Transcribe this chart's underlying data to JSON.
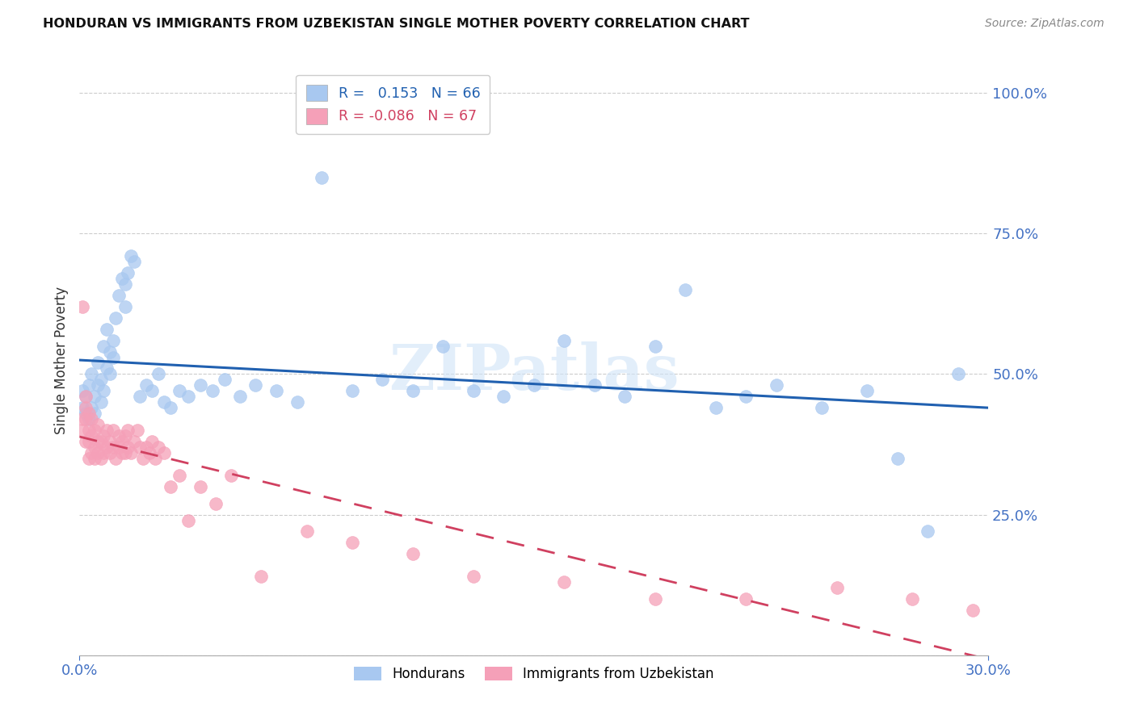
{
  "title": "HONDURAN VS IMMIGRANTS FROM UZBEKISTAN SINGLE MOTHER POVERTY CORRELATION CHART",
  "source": "Source: ZipAtlas.com",
  "ylabel": "Single Mother Poverty",
  "yticks": [
    0.0,
    0.25,
    0.5,
    0.75,
    1.0
  ],
  "ytick_labels": [
    "",
    "25.0%",
    "50.0%",
    "75.0%",
    "100.0%"
  ],
  "xlim": [
    0.0,
    0.3
  ],
  "ylim": [
    0.0,
    1.05
  ],
  "honduran_R": 0.153,
  "honduran_N": 66,
  "uzbek_R": -0.086,
  "uzbek_N": 67,
  "honduran_color": "#a8c8f0",
  "uzbek_color": "#f5a0b8",
  "trendline_honduran_color": "#2060b0",
  "trendline_uzbek_color": "#d04060",
  "watermark": "ZIPatlas",
  "honduran_scatter_x": [
    0.001,
    0.001,
    0.002,
    0.002,
    0.003,
    0.003,
    0.004,
    0.004,
    0.005,
    0.005,
    0.006,
    0.006,
    0.007,
    0.007,
    0.008,
    0.008,
    0.009,
    0.009,
    0.01,
    0.01,
    0.011,
    0.011,
    0.012,
    0.013,
    0.014,
    0.015,
    0.015,
    0.016,
    0.017,
    0.018,
    0.02,
    0.022,
    0.024,
    0.026,
    0.028,
    0.03,
    0.033,
    0.036,
    0.04,
    0.044,
    0.048,
    0.053,
    0.058,
    0.065,
    0.072,
    0.08,
    0.09,
    0.1,
    0.11,
    0.12,
    0.13,
    0.14,
    0.15,
    0.16,
    0.17,
    0.18,
    0.19,
    0.2,
    0.21,
    0.22,
    0.23,
    0.245,
    0.26,
    0.27,
    0.28,
    0.29
  ],
  "honduran_scatter_y": [
    0.44,
    0.47,
    0.43,
    0.46,
    0.42,
    0.48,
    0.44,
    0.5,
    0.43,
    0.46,
    0.48,
    0.52,
    0.45,
    0.49,
    0.47,
    0.55,
    0.51,
    0.58,
    0.5,
    0.54,
    0.53,
    0.56,
    0.6,
    0.64,
    0.67,
    0.62,
    0.66,
    0.68,
    0.71,
    0.7,
    0.46,
    0.48,
    0.47,
    0.5,
    0.45,
    0.44,
    0.47,
    0.46,
    0.48,
    0.47,
    0.49,
    0.46,
    0.48,
    0.47,
    0.45,
    0.85,
    0.47,
    0.49,
    0.47,
    0.55,
    0.47,
    0.46,
    0.48,
    0.56,
    0.48,
    0.46,
    0.55,
    0.65,
    0.44,
    0.46,
    0.48,
    0.44,
    0.47,
    0.35,
    0.22,
    0.5
  ],
  "uzbek_scatter_x": [
    0.001,
    0.001,
    0.001,
    0.002,
    0.002,
    0.002,
    0.002,
    0.003,
    0.003,
    0.003,
    0.003,
    0.004,
    0.004,
    0.004,
    0.005,
    0.005,
    0.005,
    0.006,
    0.006,
    0.006,
    0.007,
    0.007,
    0.008,
    0.008,
    0.009,
    0.009,
    0.01,
    0.01,
    0.011,
    0.011,
    0.012,
    0.013,
    0.013,
    0.014,
    0.014,
    0.015,
    0.015,
    0.016,
    0.016,
    0.017,
    0.018,
    0.019,
    0.02,
    0.021,
    0.022,
    0.023,
    0.024,
    0.025,
    0.026,
    0.028,
    0.03,
    0.033,
    0.036,
    0.04,
    0.045,
    0.05,
    0.06,
    0.075,
    0.09,
    0.11,
    0.13,
    0.16,
    0.19,
    0.22,
    0.25,
    0.275,
    0.295
  ],
  "uzbek_scatter_y": [
    0.62,
    0.42,
    0.4,
    0.38,
    0.42,
    0.44,
    0.46,
    0.35,
    0.38,
    0.4,
    0.43,
    0.36,
    0.39,
    0.42,
    0.35,
    0.37,
    0.4,
    0.36,
    0.38,
    0.41,
    0.35,
    0.38,
    0.36,
    0.39,
    0.37,
    0.4,
    0.36,
    0.38,
    0.37,
    0.4,
    0.35,
    0.37,
    0.39,
    0.36,
    0.38,
    0.36,
    0.39,
    0.37,
    0.4,
    0.36,
    0.38,
    0.4,
    0.37,
    0.35,
    0.37,
    0.36,
    0.38,
    0.35,
    0.37,
    0.36,
    0.3,
    0.32,
    0.24,
    0.3,
    0.27,
    0.32,
    0.14,
    0.22,
    0.2,
    0.18,
    0.14,
    0.13,
    0.1,
    0.1,
    0.12,
    0.1,
    0.08
  ],
  "background_color": "#ffffff",
  "grid_color": "#cccccc",
  "title_color": "#111111",
  "tick_color": "#4472c4"
}
